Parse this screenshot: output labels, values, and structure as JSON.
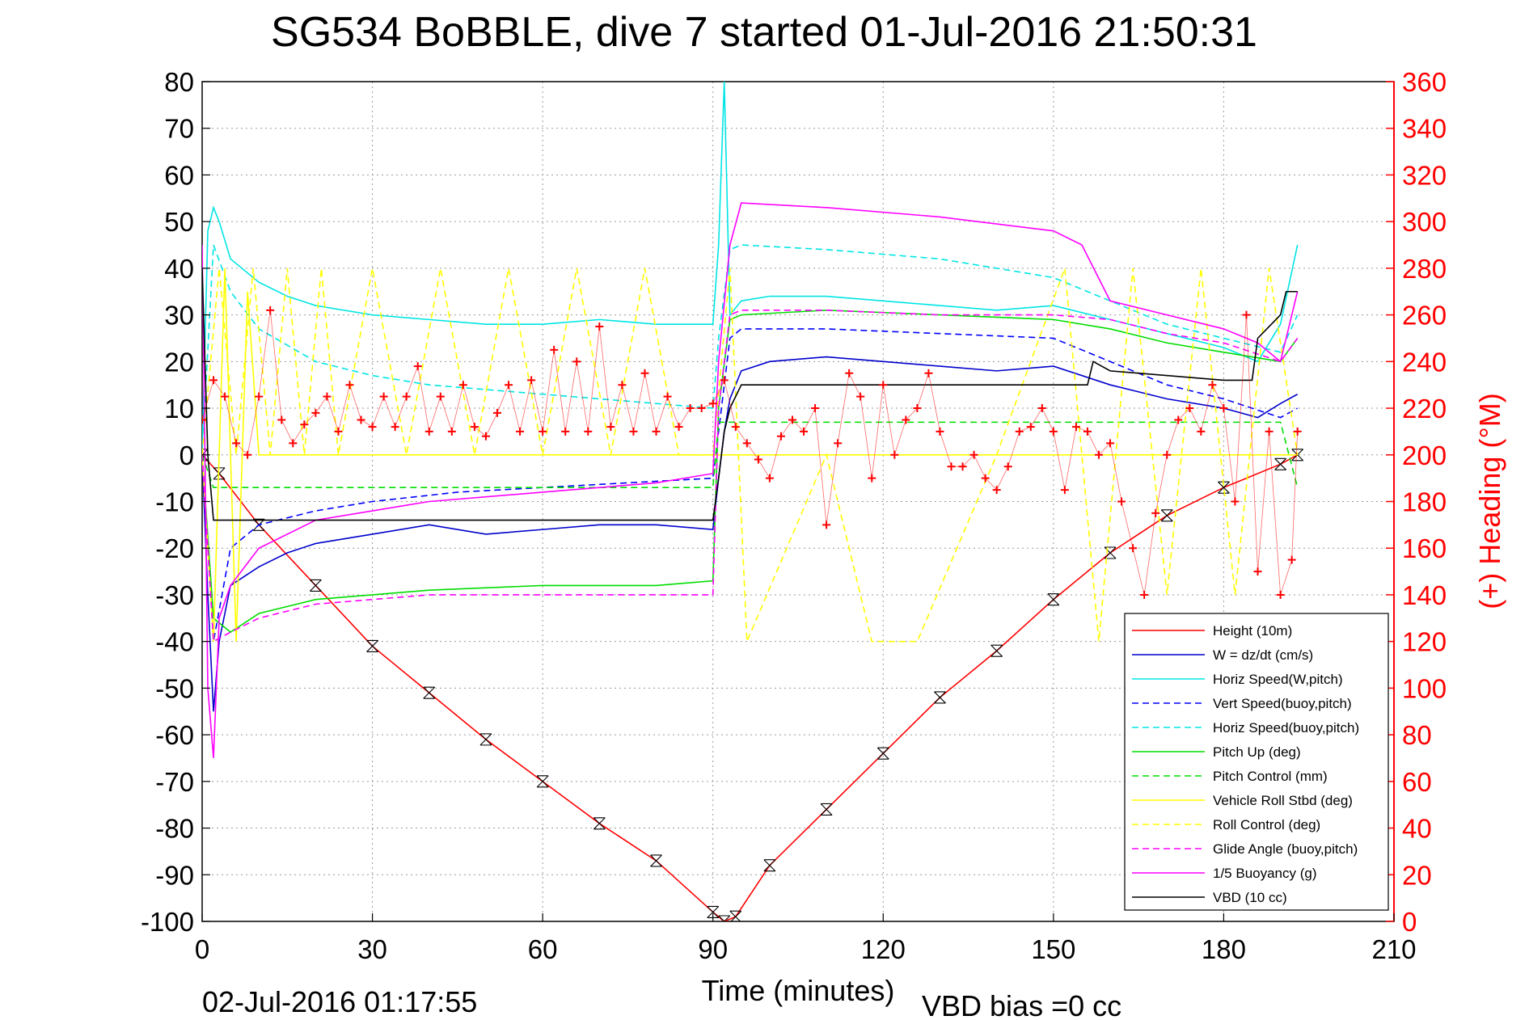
{
  "chart_data": {
    "type": "line",
    "title": "SG534 BoBBLE, dive 7 started 01-Jul-2016 21:50:31",
    "xlabel": "Time (minutes)",
    "ylabel": "",
    "y2label": "(+) Heading (°M)",
    "footer_left": "02-Jul-2016 01:17:55",
    "footer_right": "VBD bias =0 cc",
    "xlim": [
      0,
      210
    ],
    "ylim": [
      -100,
      80
    ],
    "y2lim": [
      0,
      360
    ],
    "grid": true,
    "legend_position": "bottom-right",
    "x_ticks": [
      "0",
      "30",
      "60",
      "90",
      "120",
      "150",
      "180",
      "210"
    ],
    "y_ticks": [
      "80",
      "70",
      "60",
      "50",
      "40",
      "30",
      "20",
      "10",
      "0",
      "-10",
      "-20",
      "-30",
      "-40",
      "-50",
      "-60",
      "-70",
      "-80",
      "-90",
      "-100"
    ],
    "y2_ticks": [
      "360",
      "340",
      "320",
      "300",
      "280",
      "260",
      "240",
      "220",
      "200",
      "180",
      "160",
      "140",
      "120",
      "100",
      "80",
      "60",
      "40",
      "20",
      "0"
    ],
    "series": [
      {
        "name": "Height (10m)",
        "color": "#ff0000",
        "dash": "solid",
        "x": [
          0,
          3,
          10,
          20,
          30,
          40,
          50,
          60,
          70,
          80,
          90,
          92,
          94,
          100,
          110,
          120,
          130,
          140,
          150,
          160,
          170,
          180,
          190,
          193
        ],
        "y": [
          0,
          -4,
          -15,
          -28,
          -41,
          -51,
          -61,
          -70,
          -79,
          -87,
          -98,
          -100,
          -99,
          -88,
          -76,
          -64,
          -52,
          -42,
          -31,
          -21,
          -13,
          -7,
          -2,
          0
        ]
      },
      {
        "name": "W = dz/dt (cm/s)",
        "color": "#0000cc",
        "dash": "solid",
        "x": [
          0,
          1,
          2,
          3,
          5,
          10,
          15,
          20,
          30,
          40,
          50,
          60,
          70,
          80,
          90,
          91,
          92,
          93,
          95,
          100,
          110,
          120,
          130,
          140,
          150,
          160,
          170,
          180,
          186,
          190,
          193
        ],
        "y": [
          0,
          -30,
          -55,
          -40,
          -28,
          -24,
          -21,
          -19,
          -17,
          -15,
          -17,
          -16,
          -15,
          -15,
          -16,
          -5,
          5,
          12,
          18,
          20,
          21,
          20,
          19,
          18,
          19,
          15,
          12,
          10,
          8,
          11,
          13
        ]
      },
      {
        "name": "Horiz Speed(W,pitch)",
        "color": "#00e5e5",
        "dash": "solid",
        "x": [
          0,
          1,
          2,
          3,
          5,
          10,
          15,
          20,
          30,
          40,
          50,
          60,
          70,
          80,
          90,
          91,
          92,
          93,
          95,
          100,
          110,
          120,
          130,
          140,
          150,
          160,
          170,
          180,
          186,
          190,
          193
        ],
        "y": [
          0,
          48,
          53,
          50,
          42,
          37,
          34,
          32,
          30,
          29,
          28,
          28,
          29,
          28,
          28,
          45,
          80,
          30,
          33,
          34,
          34,
          33,
          32,
          31,
          32,
          29,
          26,
          23,
          20,
          28,
          45
        ]
      },
      {
        "name": "Vert Speed(buoy,pitch)",
        "color": "#0000ff",
        "dash": "dashed",
        "x": [
          0,
          2,
          5,
          10,
          20,
          30,
          45,
          60,
          75,
          90,
          91,
          93,
          95,
          110,
          130,
          150,
          160,
          170,
          180,
          190,
          193
        ],
        "y": [
          0,
          -40,
          -20,
          -15,
          -12,
          -10,
          -8,
          -7,
          -6,
          -5,
          5,
          25,
          27,
          27,
          26,
          25,
          20,
          15,
          12,
          8,
          10
        ]
      },
      {
        "name": "Horiz Speed(buoy,pitch)",
        "color": "#00e5e5",
        "dash": "dashed",
        "x": [
          0,
          2,
          5,
          10,
          20,
          30,
          40,
          60,
          80,
          90,
          91,
          93,
          95,
          110,
          130,
          150,
          160,
          170,
          180,
          190,
          193
        ],
        "y": [
          0,
          45,
          35,
          27,
          20,
          17,
          15,
          13,
          11,
          10,
          25,
          44,
          45,
          44,
          42,
          38,
          33,
          28,
          25,
          22,
          30
        ]
      },
      {
        "name": "Pitch Up (deg)",
        "color": "#00dd00",
        "dash": "solid",
        "x": [
          0,
          2,
          5,
          10,
          20,
          30,
          40,
          60,
          80,
          90,
          91,
          93,
          95,
          110,
          130,
          150,
          160,
          170,
          180,
          190,
          193
        ],
        "y": [
          0,
          -35,
          -38,
          -34,
          -31,
          -30,
          -29,
          -28,
          -28,
          -27,
          10,
          29,
          30,
          31,
          30,
          29,
          27,
          24,
          22,
          20,
          25
        ]
      },
      {
        "name": "Pitch Control (mm)",
        "color": "#00dd00",
        "dash": "dashed",
        "x": [
          0,
          2,
          10,
          30,
          60,
          90,
          91,
          95,
          130,
          160,
          170,
          180,
          190,
          193
        ],
        "y": [
          0,
          -7,
          -7,
          -7,
          -7,
          -7,
          7,
          7,
          7,
          7,
          7,
          7,
          7,
          -7
        ]
      },
      {
        "name": "Vehicle Roll Stbd (deg)",
        "color": "#ffff00",
        "dash": "solid",
        "x": [
          0,
          2,
          4,
          6,
          8,
          10,
          20,
          30,
          40,
          50,
          60,
          70,
          80,
          90,
          92,
          100,
          110,
          120,
          130,
          140,
          150,
          160,
          170,
          180,
          190,
          193
        ],
        "y": [
          0,
          -40,
          40,
          -40,
          35,
          0,
          0,
          0,
          0,
          0,
          0,
          0,
          0,
          0,
          0,
          0,
          0,
          0,
          0,
          0,
          0,
          0,
          0,
          0,
          0,
          0
        ]
      },
      {
        "name": "Roll Control (deg)",
        "color": "#ffff00",
        "dash": "dashed",
        "x": [
          0,
          3,
          6,
          9,
          12,
          15,
          18,
          21,
          24,
          30,
          36,
          42,
          48,
          54,
          60,
          66,
          72,
          78,
          84,
          90,
          93,
          96,
          110,
          118,
          126,
          140,
          152,
          158,
          164,
          170,
          176,
          182,
          188,
          193
        ],
        "y": [
          0,
          40,
          0,
          40,
          0,
          40,
          0,
          40,
          0,
          40,
          0,
          40,
          0,
          40,
          0,
          40,
          0,
          40,
          0,
          0,
          40,
          -40,
          0,
          -40,
          -40,
          0,
          40,
          -40,
          40,
          -30,
          40,
          -30,
          40,
          0
        ]
      },
      {
        "name": "Glide Angle (buoy,pitch)",
        "color": "#ff00ff",
        "dash": "dashed",
        "x": [
          0,
          2,
          5,
          10,
          20,
          30,
          40,
          60,
          80,
          90,
          91,
          93,
          95,
          110,
          130,
          150,
          160,
          170,
          180,
          190,
          193
        ],
        "y": [
          0,
          -40,
          -38,
          -35,
          -32,
          -31,
          -30,
          -30,
          -30,
          -30,
          10,
          30,
          31,
          31,
          30,
          30,
          29,
          26,
          24,
          20,
          25
        ]
      },
      {
        "name": "1/5 Buoyancy (g)",
        "color": "#ff00ff",
        "dash": "solid",
        "x": [
          0,
          0.5,
          1,
          2,
          3,
          5,
          10,
          20,
          30,
          40,
          60,
          80,
          90,
          91,
          93,
          95,
          110,
          130,
          150,
          155,
          160,
          170,
          180,
          186,
          190,
          193
        ],
        "y": [
          45,
          0,
          -50,
          -65,
          -35,
          -28,
          -20,
          -14,
          -12,
          -10,
          -8,
          -6,
          -4,
          20,
          45,
          54,
          53,
          51,
          48,
          45,
          33,
          30,
          27,
          24,
          20,
          35
        ]
      },
      {
        "name": "VBD (10 cc)",
        "color": "#000000",
        "dash": "solid",
        "x": [
          0,
          0.5,
          1,
          2,
          10,
          20,
          40,
          60,
          80,
          90,
          91,
          92,
          93,
          95,
          110,
          130,
          150,
          156,
          157,
          160,
          180,
          185,
          186,
          190,
          191,
          193
        ],
        "y": [
          40,
          20,
          0,
          -14,
          -14,
          -14,
          -14,
          -14,
          -14,
          -14,
          -5,
          5,
          10,
          15,
          15,
          15,
          15,
          15,
          20,
          18,
          16,
          16,
          25,
          30,
          35,
          35
        ]
      },
      {
        "name": "Heading",
        "color": "#ff0000",
        "dash": "markers",
        "axis": "y2",
        "x": [
          0,
          2,
          4,
          6,
          8,
          10,
          12,
          14,
          16,
          18,
          20,
          22,
          24,
          26,
          28,
          30,
          32,
          34,
          36,
          38,
          40,
          42,
          44,
          46,
          48,
          50,
          52,
          54,
          56,
          58,
          60,
          62,
          64,
          66,
          68,
          70,
          72,
          74,
          76,
          78,
          80,
          82,
          84,
          86,
          88,
          90,
          92,
          94,
          96,
          98,
          100,
          102,
          104,
          106,
          108,
          110,
          112,
          114,
          116,
          118,
          120,
          122,
          124,
          126,
          128,
          130,
          132,
          134,
          136,
          138,
          140,
          142,
          144,
          146,
          148,
          150,
          152,
          154,
          156,
          158,
          160,
          162,
          164,
          166,
          168,
          170,
          172,
          174,
          176,
          178,
          180,
          182,
          184,
          186,
          188,
          190,
          192,
          193
        ],
        "y": [
          215,
          232,
          225,
          205,
          200,
          225,
          262,
          215,
          205,
          213,
          218,
          225,
          210,
          230,
          215,
          212,
          225,
          212,
          225,
          238,
          210,
          225,
          210,
          230,
          212,
          208,
          218,
          230,
          210,
          232,
          210,
          245,
          210,
          240,
          210,
          255,
          212,
          230,
          210,
          235,
          210,
          225,
          212,
          220,
          220,
          222,
          232,
          212,
          205,
          198,
          190,
          208,
          215,
          210,
          220,
          170,
          205,
          235,
          225,
          190,
          230,
          200,
          215,
          220,
          235,
          210,
          195,
          195,
          200,
          190,
          185,
          195,
          210,
          212,
          220,
          210,
          185,
          212,
          210,
          200,
          205,
          180,
          160,
          140,
          175,
          200,
          215,
          220,
          210,
          230,
          220,
          180,
          260,
          150,
          210,
          140,
          155,
          210
        ]
      }
    ]
  }
}
